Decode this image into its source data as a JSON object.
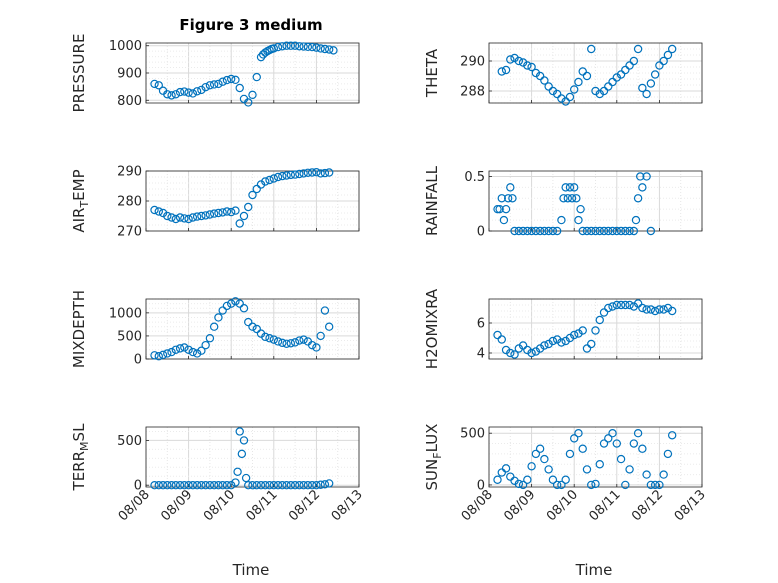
{
  "figure": {
    "title": "Figure 3 medium",
    "xlabel": "Time",
    "xticks": [
      "08/08",
      "08/09",
      "08/10",
      "08/11",
      "08/12",
      "08/13"
    ],
    "marker_color": "#0072bd"
  },
  "chart_data": [
    {
      "type": "scatter",
      "ylabel": "PRESSURE",
      "ylim": [
        790,
        1010
      ],
      "yticks": [
        800,
        900,
        1000
      ],
      "xlim": [
        0,
        5
      ],
      "grid": true,
      "x": [
        0.2,
        0.3,
        0.4,
        0.5,
        0.6,
        0.7,
        0.8,
        0.9,
        1.0,
        1.1,
        1.2,
        1.3,
        1.4,
        1.5,
        1.6,
        1.7,
        1.8,
        1.9,
        2.0,
        2.1,
        2.2,
        2.3,
        2.4,
        2.5,
        2.6,
        2.7,
        2.75,
        2.8,
        2.85,
        2.9,
        2.95,
        3.0,
        3.1,
        3.2,
        3.3,
        3.4,
        3.5,
        3.6,
        3.7,
        3.8,
        3.9,
        4.0,
        4.1,
        4.2,
        4.3,
        4.4
      ],
      "y": [
        860,
        855,
        835,
        822,
        818,
        822,
        830,
        832,
        828,
        825,
        833,
        838,
        848,
        855,
        858,
        860,
        868,
        874,
        878,
        875,
        845,
        805,
        792,
        820,
        885,
        958,
        968,
        975,
        980,
        984,
        988,
        990,
        995,
        998,
        1000,
        1000,
        1000,
        998,
        997,
        996,
        995,
        993,
        990,
        988,
        986,
        983
      ]
    },
    {
      "type": "scatter",
      "ylabel": "THETA",
      "ylim": [
        287.2,
        291.2
      ],
      "yticks": [
        288,
        290
      ],
      "xlim": [
        0,
        5
      ],
      "grid": true,
      "x": [
        0.3,
        0.4,
        0.5,
        0.6,
        0.7,
        0.8,
        0.9,
        1.0,
        1.1,
        1.2,
        1.3,
        1.4,
        1.5,
        1.6,
        1.7,
        1.8,
        1.9,
        2.0,
        2.1,
        2.2,
        2.3,
        2.4,
        2.5,
        2.6,
        2.7,
        2.8,
        2.9,
        3.0,
        3.1,
        3.2,
        3.3,
        3.4,
        3.5,
        3.6,
        3.7,
        3.8,
        3.9,
        4.0,
        4.1,
        4.2,
        4.3
      ],
      "y": [
        289.3,
        289.4,
        290.1,
        290.2,
        290.0,
        289.9,
        289.7,
        289.6,
        289.2,
        289.0,
        288.7,
        288.3,
        288.0,
        287.8,
        287.5,
        287.3,
        287.6,
        288.1,
        288.6,
        289.3,
        289.0,
        290.8,
        288.0,
        287.8,
        288.0,
        288.3,
        288.6,
        288.9,
        289.1,
        289.4,
        289.7,
        290.0,
        290.8,
        288.2,
        287.8,
        288.5,
        289.1,
        289.7,
        290.0,
        290.4,
        290.8
      ]
    },
    {
      "type": "scatter",
      "ylabel": "AIR_TEMP",
      "ylim": [
        270,
        290
      ],
      "yticks": [
        270,
        280,
        290
      ],
      "xlim": [
        0,
        5
      ],
      "grid": true,
      "x": [
        0.2,
        0.3,
        0.4,
        0.5,
        0.6,
        0.7,
        0.8,
        0.9,
        1.0,
        1.1,
        1.2,
        1.3,
        1.4,
        1.5,
        1.6,
        1.7,
        1.8,
        1.9,
        2.0,
        2.1,
        2.2,
        2.3,
        2.4,
        2.5,
        2.6,
        2.7,
        2.8,
        2.9,
        3.0,
        3.1,
        3.2,
        3.3,
        3.4,
        3.5,
        3.6,
        3.7,
        3.8,
        3.9,
        4.0,
        4.1,
        4.2,
        4.3
      ],
      "y": [
        277,
        276.5,
        276,
        275,
        274.5,
        274,
        274.5,
        274.2,
        274,
        274.5,
        274.8,
        275,
        275.2,
        275.5,
        275.8,
        276,
        276.2,
        276.5,
        276.3,
        276.8,
        272.5,
        275,
        278,
        282,
        284,
        285.5,
        286.5,
        287,
        287.5,
        288,
        288.3,
        288.5,
        288.7,
        288.8,
        289,
        289.2,
        289.4,
        289.5,
        289.6,
        289.2,
        289.3,
        289.5
      ]
    },
    {
      "type": "scatter",
      "ylabel": "RAINFALL",
      "ylim": [
        0,
        0.55
      ],
      "yticks": [
        0,
        0.5
      ],
      "xlim": [
        0,
        5
      ],
      "grid": true,
      "x": [
        0.2,
        0.25,
        0.3,
        0.35,
        0.4,
        0.45,
        0.5,
        0.55,
        0.6,
        0.7,
        0.8,
        0.9,
        1.0,
        1.1,
        1.2,
        1.3,
        1.4,
        1.5,
        1.6,
        1.7,
        1.75,
        1.8,
        1.85,
        1.9,
        1.95,
        2.0,
        2.05,
        2.1,
        2.15,
        2.2,
        2.3,
        2.4,
        2.5,
        2.6,
        2.7,
        2.8,
        2.9,
        3.0,
        3.1,
        3.2,
        3.3,
        3.4,
        3.45,
        3.5,
        3.55,
        3.6,
        3.7,
        3.8
      ],
      "y": [
        0.2,
        0.2,
        0.3,
        0.1,
        0.2,
        0.3,
        0.4,
        0.3,
        0,
        0,
        0,
        0,
        0,
        0,
        0,
        0,
        0,
        0,
        0,
        0.1,
        0.3,
        0.4,
        0.3,
        0.4,
        0.3,
        0.4,
        0.3,
        0.1,
        0.2,
        0,
        0,
        0,
        0,
        0,
        0,
        0,
        0,
        0,
        0,
        0,
        0,
        0,
        0.1,
        0.3,
        0.5,
        0.4,
        0.5,
        0
      ]
    },
    {
      "type": "scatter",
      "ylabel": "MIXDEPTH",
      "ylim": [
        0,
        1300
      ],
      "yticks": [
        0,
        500,
        1000
      ],
      "xlim": [
        0,
        5
      ],
      "grid": true,
      "x": [
        0.2,
        0.3,
        0.4,
        0.5,
        0.6,
        0.7,
        0.8,
        0.9,
        1.0,
        1.1,
        1.2,
        1.3,
        1.4,
        1.5,
        1.6,
        1.7,
        1.8,
        1.9,
        2.0,
        2.1,
        2.2,
        2.3,
        2.4,
        2.5,
        2.6,
        2.7,
        2.8,
        2.9,
        3.0,
        3.1,
        3.2,
        3.3,
        3.4,
        3.5,
        3.6,
        3.7,
        3.8,
        3.9,
        4.0,
        4.1,
        4.2,
        4.3
      ],
      "y": [
        80,
        60,
        90,
        120,
        150,
        200,
        230,
        250,
        200,
        150,
        120,
        180,
        300,
        450,
        700,
        900,
        1050,
        1150,
        1200,
        1250,
        1200,
        1100,
        800,
        700,
        650,
        550,
        480,
        450,
        420,
        380,
        350,
        330,
        340,
        360,
        400,
        420,
        380,
        300,
        250,
        500,
        1050,
        700
      ]
    },
    {
      "type": "scatter",
      "ylabel": "H2OMIXRA",
      "ylim": [
        3.6,
        7.6
      ],
      "yticks": [
        4,
        6
      ],
      "xlim": [
        0,
        5
      ],
      "grid": true,
      "x": [
        0.2,
        0.3,
        0.4,
        0.5,
        0.6,
        0.7,
        0.8,
        0.9,
        1.0,
        1.1,
        1.2,
        1.3,
        1.4,
        1.5,
        1.6,
        1.7,
        1.8,
        1.9,
        2.0,
        2.1,
        2.2,
        2.3,
        2.4,
        2.5,
        2.6,
        2.7,
        2.8,
        2.9,
        3.0,
        3.1,
        3.2,
        3.3,
        3.4,
        3.5,
        3.6,
        3.7,
        3.8,
        3.9,
        4.0,
        4.1,
        4.2,
        4.3
      ],
      "y": [
        5.2,
        4.9,
        4.2,
        4.0,
        3.9,
        4.3,
        4.5,
        4.2,
        4.0,
        4.1,
        4.3,
        4.5,
        4.6,
        4.8,
        4.9,
        4.7,
        4.8,
        5.0,
        5.2,
        5.3,
        5.5,
        4.3,
        4.6,
        5.5,
        6.2,
        6.7,
        7.0,
        7.1,
        7.2,
        7.2,
        7.2,
        7.2,
        7.1,
        7.3,
        7.0,
        6.9,
        6.9,
        6.8,
        6.9,
        6.9,
        7.0,
        6.8
      ]
    },
    {
      "type": "scatter",
      "ylabel": "TERR_MSL",
      "ylim": [
        -20,
        650
      ],
      "yticks": [
        0,
        500
      ],
      "xlim": [
        0,
        5
      ],
      "grid": true,
      "x": [
        0.2,
        0.3,
        0.4,
        0.5,
        0.6,
        0.7,
        0.8,
        0.9,
        1.0,
        1.1,
        1.2,
        1.3,
        1.4,
        1.5,
        1.6,
        1.7,
        1.8,
        1.9,
        2.0,
        2.1,
        2.15,
        2.2,
        2.25,
        2.3,
        2.35,
        2.4,
        2.5,
        2.6,
        2.7,
        2.8,
        2.9,
        3.0,
        3.1,
        3.2,
        3.3,
        3.4,
        3.5,
        3.6,
        3.7,
        3.8,
        3.9,
        4.0,
        4.1,
        4.2,
        4.3
      ],
      "y": [
        0,
        0,
        0,
        0,
        0,
        0,
        0,
        0,
        0,
        0,
        0,
        0,
        0,
        0,
        0,
        0,
        0,
        0,
        0,
        30,
        150,
        600,
        350,
        500,
        80,
        0,
        0,
        0,
        0,
        0,
        0,
        0,
        0,
        0,
        0,
        0,
        0,
        0,
        0,
        0,
        0,
        0,
        5,
        10,
        20
      ]
    },
    {
      "type": "scatter",
      "ylabel": "SUN_FLUX",
      "ylim": [
        -20,
        560
      ],
      "yticks": [
        0,
        500
      ],
      "xlim": [
        0,
        5
      ],
      "grid": true,
      "x": [
        0.2,
        0.3,
        0.4,
        0.5,
        0.6,
        0.7,
        0.8,
        0.9,
        1.0,
        1.1,
        1.2,
        1.3,
        1.4,
        1.5,
        1.6,
        1.7,
        1.8,
        1.9,
        2.0,
        2.1,
        2.2,
        2.3,
        2.4,
        2.5,
        2.6,
        2.7,
        2.8,
        2.9,
        3.0,
        3.1,
        3.2,
        3.3,
        3.4,
        3.5,
        3.6,
        3.7,
        3.8,
        3.9,
        4.0,
        4.1,
        4.2,
        4.3
      ],
      "y": [
        50,
        120,
        160,
        80,
        40,
        10,
        0,
        50,
        180,
        300,
        350,
        250,
        150,
        50,
        0,
        0,
        50,
        300,
        450,
        500,
        350,
        150,
        0,
        10,
        200,
        400,
        450,
        500,
        400,
        250,
        0,
        150,
        400,
        500,
        350,
        100,
        0,
        0,
        0,
        100,
        300,
        480
      ]
    }
  ]
}
